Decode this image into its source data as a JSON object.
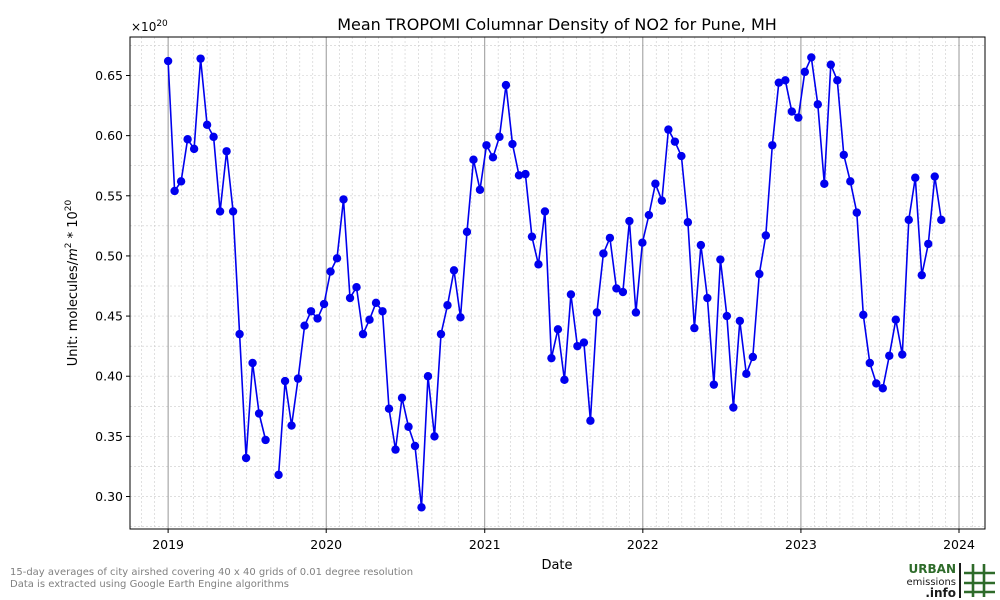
{
  "chart_data": {
    "type": "line",
    "title": "Mean TROPOMI Columnar Density of NO2 for Pune, MH",
    "xlabel": "Date",
    "ylabel_prefix": "Unit: molecules/",
    "ylabel_m": "m",
    "ylabel_m_exp": "2",
    "ylabel_mid": " * 10",
    "ylabel_exp": "20",
    "y_offset_base": "×10",
    "y_offset_exp": "20",
    "xlim": [
      "2018-10-05",
      "2024-03-01"
    ],
    "ylim": [
      0.273,
      0.682
    ],
    "x_ticks": [
      {
        "date": "2019-01-01",
        "label": "2019"
      },
      {
        "date": "2020-01-01",
        "label": "2020"
      },
      {
        "date": "2021-01-01",
        "label": "2021"
      },
      {
        "date": "2022-01-01",
        "label": "2022"
      },
      {
        "date": "2023-01-01",
        "label": "2023"
      },
      {
        "date": "2024-01-01",
        "label": "2024"
      }
    ],
    "y_ticks": [
      {
        "value": 0.3,
        "label": "0.30"
      },
      {
        "value": 0.35,
        "label": "0.35"
      },
      {
        "value": 0.4,
        "label": "0.40"
      },
      {
        "value": 0.45,
        "label": "0.45"
      },
      {
        "value": 0.5,
        "label": "0.50"
      },
      {
        "value": 0.55,
        "label": "0.55"
      },
      {
        "value": 0.6,
        "label": "0.60"
      },
      {
        "value": 0.65,
        "label": "0.65"
      }
    ],
    "grid": true,
    "colors": {
      "series": "#0000ee",
      "major_grid": "#8c8c8c",
      "minor_grid": "#cccccc"
    },
    "series": [
      {
        "points": [
          {
            "date": "2019-01-01",
            "value": 0.662
          },
          {
            "date": "2019-01-16",
            "value": 0.554
          },
          {
            "date": "2019-01-31",
            "value": 0.562
          },
          {
            "date": "2019-02-15",
            "value": 0.597
          },
          {
            "date": "2019-03-02",
            "value": 0.589
          },
          {
            "date": "2019-03-17",
            "value": 0.664
          },
          {
            "date": "2019-04-01",
            "value": 0.609
          },
          {
            "date": "2019-04-16",
            "value": 0.599
          },
          {
            "date": "2019-05-01",
            "value": 0.537
          },
          {
            "date": "2019-05-16",
            "value": 0.587
          },
          {
            "date": "2019-05-31",
            "value": 0.537
          },
          {
            "date": "2019-06-15",
            "value": 0.435
          },
          {
            "date": "2019-06-30",
            "value": 0.332
          },
          {
            "date": "2019-07-15",
            "value": 0.411
          },
          {
            "date": "2019-07-30",
            "value": 0.369
          },
          {
            "date": "2019-08-14",
            "value": 0.347
          },
          {
            "date": "2019-08-29",
            "value": null
          },
          {
            "date": "2019-09-13",
            "value": 0.318
          },
          {
            "date": "2019-09-28",
            "value": 0.396
          },
          {
            "date": "2019-10-13",
            "value": 0.359
          },
          {
            "date": "2019-10-28",
            "value": 0.398
          },
          {
            "date": "2019-11-12",
            "value": 0.442
          },
          {
            "date": "2019-11-27",
            "value": 0.454
          },
          {
            "date": "2019-12-12",
            "value": 0.448
          },
          {
            "date": "2019-12-27",
            "value": 0.46
          },
          {
            "date": "2020-01-11",
            "value": 0.487
          },
          {
            "date": "2020-01-26",
            "value": 0.498
          },
          {
            "date": "2020-02-10",
            "value": 0.547
          },
          {
            "date": "2020-02-25",
            "value": 0.465
          },
          {
            "date": "2020-03-11",
            "value": 0.474
          },
          {
            "date": "2020-03-26",
            "value": 0.435
          },
          {
            "date": "2020-04-10",
            "value": 0.447
          },
          {
            "date": "2020-04-25",
            "value": 0.461
          },
          {
            "date": "2020-05-10",
            "value": 0.454
          },
          {
            "date": "2020-05-25",
            "value": 0.373
          },
          {
            "date": "2020-06-09",
            "value": 0.339
          },
          {
            "date": "2020-06-24",
            "value": 0.382
          },
          {
            "date": "2020-07-09",
            "value": 0.358
          },
          {
            "date": "2020-07-24",
            "value": 0.342
          },
          {
            "date": "2020-08-08",
            "value": 0.291
          },
          {
            "date": "2020-08-23",
            "value": 0.4
          },
          {
            "date": "2020-09-07",
            "value": 0.35
          },
          {
            "date": "2020-09-22",
            "value": 0.435
          },
          {
            "date": "2020-10-07",
            "value": 0.459
          },
          {
            "date": "2020-10-22",
            "value": 0.488
          },
          {
            "date": "2020-11-06",
            "value": 0.449
          },
          {
            "date": "2020-11-21",
            "value": 0.52
          },
          {
            "date": "2020-12-06",
            "value": 0.58
          },
          {
            "date": "2020-12-21",
            "value": 0.555
          },
          {
            "date": "2021-01-05",
            "value": 0.592
          },
          {
            "date": "2021-01-20",
            "value": 0.582
          },
          {
            "date": "2021-02-04",
            "value": 0.599
          },
          {
            "date": "2021-02-19",
            "value": 0.642
          },
          {
            "date": "2021-03-06",
            "value": 0.593
          },
          {
            "date": "2021-03-21",
            "value": 0.567
          },
          {
            "date": "2021-04-05",
            "value": 0.568
          },
          {
            "date": "2021-04-20",
            "value": 0.516
          },
          {
            "date": "2021-05-05",
            "value": 0.493
          },
          {
            "date": "2021-05-20",
            "value": 0.537
          },
          {
            "date": "2021-06-04",
            "value": 0.415
          },
          {
            "date": "2021-06-19",
            "value": 0.439
          },
          {
            "date": "2021-07-04",
            "value": 0.397
          },
          {
            "date": "2021-07-19",
            "value": 0.468
          },
          {
            "date": "2021-08-03",
            "value": 0.425
          },
          {
            "date": "2021-08-18",
            "value": 0.428
          },
          {
            "date": "2021-09-02",
            "value": 0.363
          },
          {
            "date": "2021-09-17",
            "value": 0.453
          },
          {
            "date": "2021-10-02",
            "value": 0.502
          },
          {
            "date": "2021-10-17",
            "value": 0.515
          },
          {
            "date": "2021-11-01",
            "value": 0.473
          },
          {
            "date": "2021-11-16",
            "value": 0.47
          },
          {
            "date": "2021-12-01",
            "value": 0.529
          },
          {
            "date": "2021-12-16",
            "value": 0.453
          },
          {
            "date": "2021-12-31",
            "value": 0.511
          },
          {
            "date": "2022-01-15",
            "value": 0.534
          },
          {
            "date": "2022-01-30",
            "value": 0.56
          },
          {
            "date": "2022-02-14",
            "value": 0.546
          },
          {
            "date": "2022-03-01",
            "value": 0.605
          },
          {
            "date": "2022-03-16",
            "value": 0.595
          },
          {
            "date": "2022-03-31",
            "value": 0.583
          },
          {
            "date": "2022-04-15",
            "value": 0.528
          },
          {
            "date": "2022-04-30",
            "value": 0.44
          },
          {
            "date": "2022-05-15",
            "value": 0.509
          },
          {
            "date": "2022-05-30",
            "value": 0.465
          },
          {
            "date": "2022-06-14",
            "value": 0.393
          },
          {
            "date": "2022-06-29",
            "value": 0.497
          },
          {
            "date": "2022-07-14",
            "value": 0.45
          },
          {
            "date": "2022-07-29",
            "value": 0.374
          },
          {
            "date": "2022-08-13",
            "value": 0.446
          },
          {
            "date": "2022-08-28",
            "value": 0.402
          },
          {
            "date": "2022-09-12",
            "value": 0.416
          },
          {
            "date": "2022-09-27",
            "value": 0.485
          },
          {
            "date": "2022-10-12",
            "value": 0.517
          },
          {
            "date": "2022-10-27",
            "value": 0.592
          },
          {
            "date": "2022-11-11",
            "value": 0.644
          },
          {
            "date": "2022-11-26",
            "value": 0.646
          },
          {
            "date": "2022-12-11",
            "value": 0.62
          },
          {
            "date": "2022-12-26",
            "value": 0.615
          },
          {
            "date": "2023-01-10",
            "value": 0.653
          },
          {
            "date": "2023-01-25",
            "value": 0.665
          },
          {
            "date": "2023-02-09",
            "value": 0.626
          },
          {
            "date": "2023-02-24",
            "value": 0.56
          },
          {
            "date": "2023-03-11",
            "value": 0.659
          },
          {
            "date": "2023-03-26",
            "value": 0.646
          },
          {
            "date": "2023-04-10",
            "value": 0.584
          },
          {
            "date": "2023-04-25",
            "value": 0.562
          },
          {
            "date": "2023-05-10",
            "value": 0.536
          },
          {
            "date": "2023-05-25",
            "value": 0.451
          },
          {
            "date": "2023-06-09",
            "value": 0.411
          },
          {
            "date": "2023-06-24",
            "value": 0.394
          },
          {
            "date": "2023-07-09",
            "value": 0.39
          },
          {
            "date": "2023-07-24",
            "value": 0.417
          },
          {
            "date": "2023-08-08",
            "value": 0.447
          },
          {
            "date": "2023-08-23",
            "value": 0.418
          },
          {
            "date": "2023-09-07",
            "value": 0.53
          },
          {
            "date": "2023-09-22",
            "value": 0.565
          },
          {
            "date": "2023-10-07",
            "value": 0.484
          },
          {
            "date": "2023-10-22",
            "value": 0.51
          },
          {
            "date": "2023-11-06",
            "value": 0.566
          },
          {
            "date": "2023-11-21",
            "value": 0.53
          }
        ]
      }
    ]
  },
  "footnotes": {
    "line1": "15-day averages of city airshed covering 40 x 40 grids of 0.01 degree resolution",
    "line2": "Data is extracted using Google Earth Engine algorithms"
  },
  "logo": {
    "word1": "URBAN",
    "word2": "emissions",
    "word3": ".info",
    "colors": {
      "green": "#2e6b2a",
      "dark": "#1a1a1a"
    }
  }
}
